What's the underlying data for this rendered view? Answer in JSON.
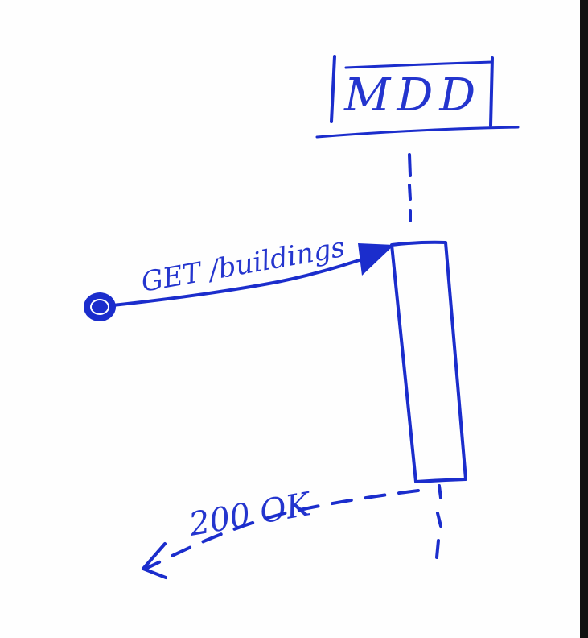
{
  "diagram": {
    "type": "sequence-diagram",
    "participant": {
      "name": "MDD"
    },
    "messages": [
      {
        "kind": "request",
        "text": "GET /buildings"
      },
      {
        "kind": "response",
        "text": "200 OK"
      }
    ]
  },
  "colors": {
    "ink": "#1b2dcc",
    "page_edge": "#111111"
  }
}
